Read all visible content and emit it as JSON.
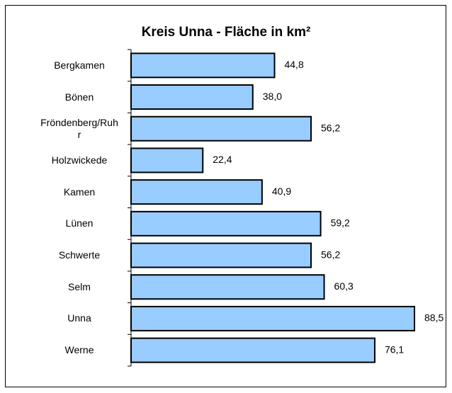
{
  "chart_data": {
    "type": "bar",
    "orientation": "horizontal",
    "title": "Kreis Unna - Fläche in km²",
    "categories": [
      "Bergkamen",
      "Bönen",
      "Fröndenberg/Ruhr",
      "Holzwickede",
      "Kamen",
      "Lünen",
      "Schwerte",
      "Selm",
      "Unna",
      "Werne"
    ],
    "values": [
      44.8,
      38.0,
      56.2,
      22.4,
      40.9,
      59.2,
      56.2,
      60.3,
      88.5,
      76.1
    ],
    "value_labels": [
      "44,8",
      "38,0",
      "56,2",
      "22,4",
      "40,9",
      "59,2",
      "56,2",
      "60,3",
      "88,5",
      "76,1"
    ],
    "color": "#99ccff",
    "xlim": [
      0,
      100
    ]
  }
}
